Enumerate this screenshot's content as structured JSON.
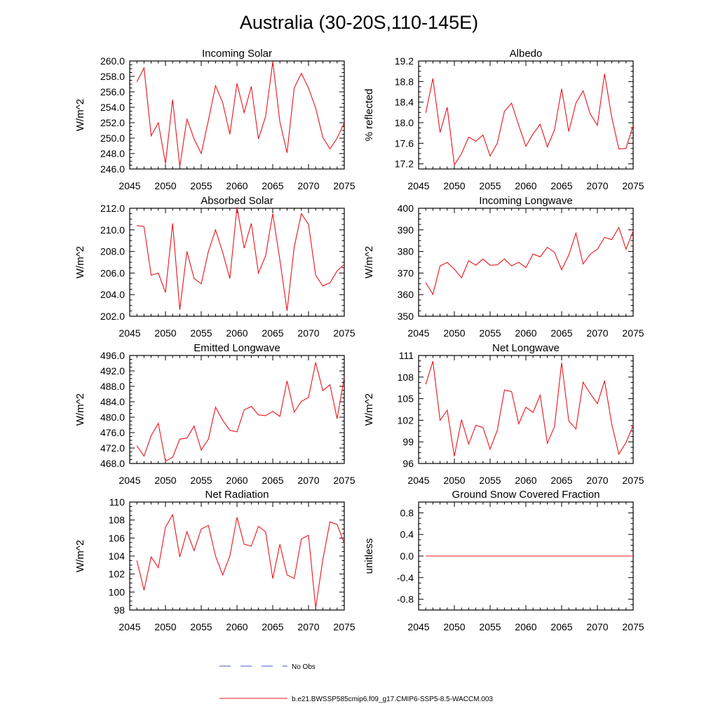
{
  "page": {
    "title": "Australia (30-20S,110-145E)"
  },
  "colors": {
    "model": "#e8141c",
    "obs": "#4a55c4",
    "axis": "#000000"
  },
  "legend": {
    "obs_label": "No Obs",
    "model_label": "b.e21.BWSSP585cmip6.f09_g17.CMIP6-SSP5-8.5-WACCM.003"
  },
  "chart_data": [
    {
      "type": "line",
      "title": "Incoming Solar",
      "ylabel": "W/m^2",
      "xlim": [
        2045,
        2075
      ],
      "xticks": [
        2045,
        2050,
        2055,
        2060,
        2065,
        2070,
        2075
      ],
      "xticklabels": [
        "2045",
        "2050",
        "2055",
        "2060",
        "2065",
        "2070",
        "2075"
      ],
      "ylim": [
        246,
        260
      ],
      "yticks": [
        246,
        248,
        250,
        252,
        254,
        256,
        258,
        260
      ],
      "yticklabels": [
        "246.0",
        "248.0",
        "250.0",
        "252.0",
        "254.0",
        "256.0",
        "258.0",
        "260.0"
      ],
      "series": [
        {
          "name": "b.e21.BWSSP585cmip6.f09_g17.CMIP6-SSP5-8.5-WACCM.003",
          "x": [
            2046,
            2047,
            2048,
            2049,
            2050,
            2051,
            2052,
            2053,
            2054,
            2055,
            2056,
            2057,
            2058,
            2059,
            2060,
            2061,
            2062,
            2063,
            2064,
            2065,
            2066,
            2067,
            2068,
            2069,
            2070,
            2071,
            2072,
            2073,
            2074,
            2075
          ],
          "values": [
            257.3,
            259.1,
            250.3,
            252.0,
            246.7,
            255.0,
            246.3,
            252.5,
            249.9,
            248.0,
            252.3,
            256.8,
            254.6,
            250.5,
            257.1,
            253.3,
            256.7,
            249.9,
            252.8,
            259.9,
            252.1,
            248.1,
            256.5,
            258.4,
            256.5,
            253.9,
            250.1,
            248.6,
            250.0,
            252.0
          ]
        }
      ]
    },
    {
      "type": "line",
      "title": "Albedo",
      "ylabel": "% reflected",
      "xlim": [
        2045,
        2075
      ],
      "xticks": [
        2045,
        2050,
        2055,
        2060,
        2065,
        2070,
        2075
      ],
      "xticklabels": [
        "2045",
        "2050",
        "2055",
        "2060",
        "2065",
        "2070",
        "2075"
      ],
      "ylim": [
        17.1,
        19.2
      ],
      "yticks": [
        17.2,
        17.6,
        18.0,
        18.4,
        18.8,
        19.2
      ],
      "yticklabels": [
        "17.2",
        "17.6",
        "18.0",
        "18.4",
        "18.8",
        "19.2"
      ],
      "series": [
        {
          "name": "b.e21.BWSSP585cmip6.f09_g17.CMIP6-SSP5-8.5-WACCM.003",
          "x": [
            2046,
            2047,
            2048,
            2049,
            2050,
            2051,
            2052,
            2053,
            2054,
            2055,
            2056,
            2057,
            2058,
            2059,
            2060,
            2061,
            2062,
            2063,
            2064,
            2065,
            2066,
            2067,
            2068,
            2069,
            2070,
            2071,
            2072,
            2073,
            2074,
            2075
          ],
          "values": [
            18.19,
            18.86,
            17.81,
            18.3,
            17.18,
            17.4,
            17.72,
            17.64,
            17.76,
            17.35,
            17.6,
            18.22,
            18.38,
            17.95,
            17.54,
            17.78,
            17.97,
            17.53,
            17.86,
            18.66,
            17.83,
            18.38,
            18.62,
            18.17,
            17.95,
            18.95,
            18.11,
            17.49,
            17.5,
            17.95
          ]
        }
      ]
    },
    {
      "type": "line",
      "title": "Absorbed Solar",
      "ylabel": "W/m^2",
      "xlim": [
        2045,
        2075
      ],
      "xticks": [
        2045,
        2050,
        2055,
        2060,
        2065,
        2070,
        2075
      ],
      "xticklabels": [
        "2045",
        "2050",
        "2055",
        "2060",
        "2065",
        "2070",
        "2075"
      ],
      "ylim": [
        202,
        212
      ],
      "yticks": [
        202,
        204,
        206,
        208,
        210,
        212
      ],
      "yticklabels": [
        "202.0",
        "204.0",
        "206.0",
        "208.0",
        "210.0",
        "212.0"
      ],
      "series": [
        {
          "name": "b.e21.BWSSP585cmip6.f09_g17.CMIP6-SSP5-8.5-WACCM.003",
          "x": [
            2046,
            2047,
            2048,
            2049,
            2050,
            2051,
            2052,
            2053,
            2054,
            2055,
            2056,
            2057,
            2058,
            2059,
            2060,
            2061,
            2062,
            2063,
            2064,
            2065,
            2066,
            2067,
            2068,
            2069,
            2070,
            2071,
            2072,
            2073,
            2074,
            2075
          ],
          "values": [
            210.4,
            210.3,
            205.8,
            206.0,
            204.2,
            210.6,
            202.6,
            208.0,
            205.5,
            205.0,
            208.0,
            210.0,
            207.9,
            205.5,
            212.1,
            208.3,
            210.6,
            206.0,
            207.6,
            211.5,
            207.2,
            202.5,
            208.4,
            211.5,
            210.5,
            205.8,
            204.8,
            205.1,
            206.2,
            206.8
          ]
        }
      ]
    },
    {
      "type": "line",
      "title": "Incoming Longwave",
      "ylabel": "W/m^2",
      "xlim": [
        2045,
        2075
      ],
      "xticks": [
        2045,
        2050,
        2055,
        2060,
        2065,
        2070,
        2075
      ],
      "xticklabels": [
        "2045",
        "2050",
        "2055",
        "2060",
        "2065",
        "2070",
        "2075"
      ],
      "ylim": [
        350,
        400
      ],
      "yticks": [
        350,
        360,
        370,
        380,
        390,
        400
      ],
      "yticklabels": [
        "350",
        "360",
        "370",
        "380",
        "390",
        "400"
      ],
      "series": [
        {
          "name": "b.e21.BWSSP585cmip6.f09_g17.CMIP6-SSP5-8.5-WACCM.003",
          "x": [
            2046,
            2047,
            2048,
            2049,
            2050,
            2051,
            2052,
            2053,
            2054,
            2055,
            2056,
            2057,
            2058,
            2059,
            2060,
            2061,
            2062,
            2063,
            2064,
            2065,
            2066,
            2067,
            2068,
            2069,
            2070,
            2071,
            2072,
            2073,
            2074,
            2075
          ],
          "values": [
            365.6,
            360.1,
            373.3,
            374.9,
            371.8,
            367.8,
            375.7,
            373.6,
            376.5,
            373.6,
            373.8,
            376.5,
            373.3,
            375.0,
            372.5,
            378.8,
            377.5,
            381.9,
            379.6,
            371.5,
            378.3,
            388.5,
            374.2,
            378.7,
            381.0,
            386.5,
            385.5,
            391.1,
            381.0,
            389.5
          ]
        }
      ]
    },
    {
      "type": "line",
      "title": "Emitted Longwave",
      "ylabel": "W/m^2",
      "xlim": [
        2045,
        2075
      ],
      "xticks": [
        2045,
        2050,
        2055,
        2060,
        2065,
        2070,
        2075
      ],
      "xticklabels": [
        "2045",
        "2050",
        "2055",
        "2060",
        "2065",
        "2070",
        "2075"
      ],
      "ylim": [
        468,
        496
      ],
      "yticks": [
        468,
        472,
        476,
        480,
        484,
        488,
        492,
        496
      ],
      "yticklabels": [
        "468.0",
        "472.0",
        "476.0",
        "480.0",
        "484.0",
        "488.0",
        "492.0",
        "496.0"
      ],
      "series": [
        {
          "name": "b.e21.BWSSP585cmip6.f09_g17.CMIP6-SSP5-8.5-WACCM.003",
          "x": [
            2046,
            2047,
            2048,
            2049,
            2050,
            2051,
            2052,
            2053,
            2054,
            2055,
            2056,
            2057,
            2058,
            2059,
            2060,
            2061,
            2062,
            2063,
            2064,
            2065,
            2066,
            2067,
            2068,
            2069,
            2070,
            2071,
            2072,
            2073,
            2074,
            2075
          ],
          "values": [
            472.6,
            469.9,
            475.2,
            478.4,
            468.6,
            469.6,
            474.3,
            474.6,
            477.7,
            471.5,
            474.3,
            482.6,
            479.2,
            476.6,
            476.2,
            481.9,
            482.8,
            480.6,
            480.4,
            481.5,
            480.2,
            489.4,
            481.3,
            484.1,
            485.1,
            494.2,
            486.9,
            488.4,
            479.6,
            490.4
          ]
        }
      ]
    },
    {
      "type": "line",
      "title": "Net Longwave",
      "ylabel": "W/m^2",
      "xlim": [
        2045,
        2075
      ],
      "xticks": [
        2045,
        2050,
        2055,
        2060,
        2065,
        2070,
        2075
      ],
      "xticklabels": [
        "2045",
        "2050",
        "2055",
        "2060",
        "2065",
        "2070",
        "2075"
      ],
      "ylim": [
        96,
        111
      ],
      "yticks": [
        96,
        99,
        102,
        105,
        108,
        111
      ],
      "yticklabels": [
        "96",
        "99",
        "102",
        "105",
        "108",
        "111"
      ],
      "series": [
        {
          "name": "b.e21.BWSSP585cmip6.f09_g17.CMIP6-SSP5-8.5-WACCM.003",
          "x": [
            2046,
            2047,
            2048,
            2049,
            2050,
            2051,
            2052,
            2053,
            2054,
            2055,
            2056,
            2057,
            2058,
            2059,
            2060,
            2061,
            2062,
            2063,
            2064,
            2065,
            2066,
            2067,
            2068,
            2069,
            2070,
            2071,
            2072,
            2073,
            2074,
            2075
          ],
          "values": [
            107.0,
            110.2,
            102.0,
            103.4,
            97.0,
            102.1,
            98.7,
            101.3,
            101.0,
            98.0,
            100.6,
            106.2,
            106.0,
            101.5,
            103.8,
            103.1,
            105.5,
            98.8,
            101.1,
            110.0,
            101.9,
            100.8,
            107.3,
            105.7,
            104.3,
            107.5,
            101.5,
            97.3,
            98.9,
            101.3
          ]
        }
      ]
    },
    {
      "type": "line",
      "title": "Net Radiation",
      "ylabel": "W/m^2",
      "xlim": [
        2045,
        2075
      ],
      "xticks": [
        2045,
        2050,
        2055,
        2060,
        2065,
        2070,
        2075
      ],
      "xticklabels": [
        "2045",
        "2050",
        "2055",
        "2060",
        "2065",
        "2070",
        "2075"
      ],
      "ylim": [
        98,
        110
      ],
      "yticks": [
        98,
        100,
        102,
        104,
        106,
        108,
        110
      ],
      "yticklabels": [
        "98",
        "100",
        "102",
        "104",
        "106",
        "108",
        "110"
      ],
      "series": [
        {
          "name": "b.e21.BWSSP585cmip6.f09_g17.CMIP6-SSP5-8.5-WACCM.003",
          "x": [
            2046,
            2047,
            2048,
            2049,
            2050,
            2051,
            2052,
            2053,
            2054,
            2055,
            2056,
            2057,
            2058,
            2059,
            2060,
            2061,
            2062,
            2063,
            2064,
            2065,
            2066,
            2067,
            2068,
            2069,
            2070,
            2071,
            2072,
            2073,
            2074,
            2075
          ],
          "values": [
            103.5,
            100.2,
            103.9,
            102.7,
            107.2,
            108.6,
            103.9,
            106.7,
            104.6,
            107.0,
            107.4,
            104.0,
            101.9,
            104.0,
            108.3,
            105.3,
            105.1,
            107.3,
            106.7,
            101.5,
            105.3,
            101.9,
            101.5,
            105.9,
            106.3,
            98.2,
            103.6,
            107.8,
            107.5,
            105.4
          ]
        }
      ]
    },
    {
      "type": "line",
      "title": "Ground Snow Covered Fraction",
      "ylabel": "unitless",
      "xlim": [
        2045,
        2075
      ],
      "xticks": [
        2045,
        2050,
        2055,
        2060,
        2065,
        2070,
        2075
      ],
      "xticklabels": [
        "2045",
        "2050",
        "2055",
        "2060",
        "2065",
        "2070",
        "2075"
      ],
      "ylim": [
        -1,
        1
      ],
      "yticks": [
        -0.8,
        -0.4,
        0.0,
        0.4,
        0.8
      ],
      "yticklabels": [
        "-0.8",
        "-0.4",
        "0.0",
        "0.4",
        "0.8"
      ],
      "series": [
        {
          "name": "b.e21.BWSSP585cmip6.f09_g17.CMIP6-SSP5-8.5-WACCM.003",
          "x": [
            2046,
            2075
          ],
          "values": [
            0.0,
            0.0
          ]
        }
      ]
    }
  ]
}
